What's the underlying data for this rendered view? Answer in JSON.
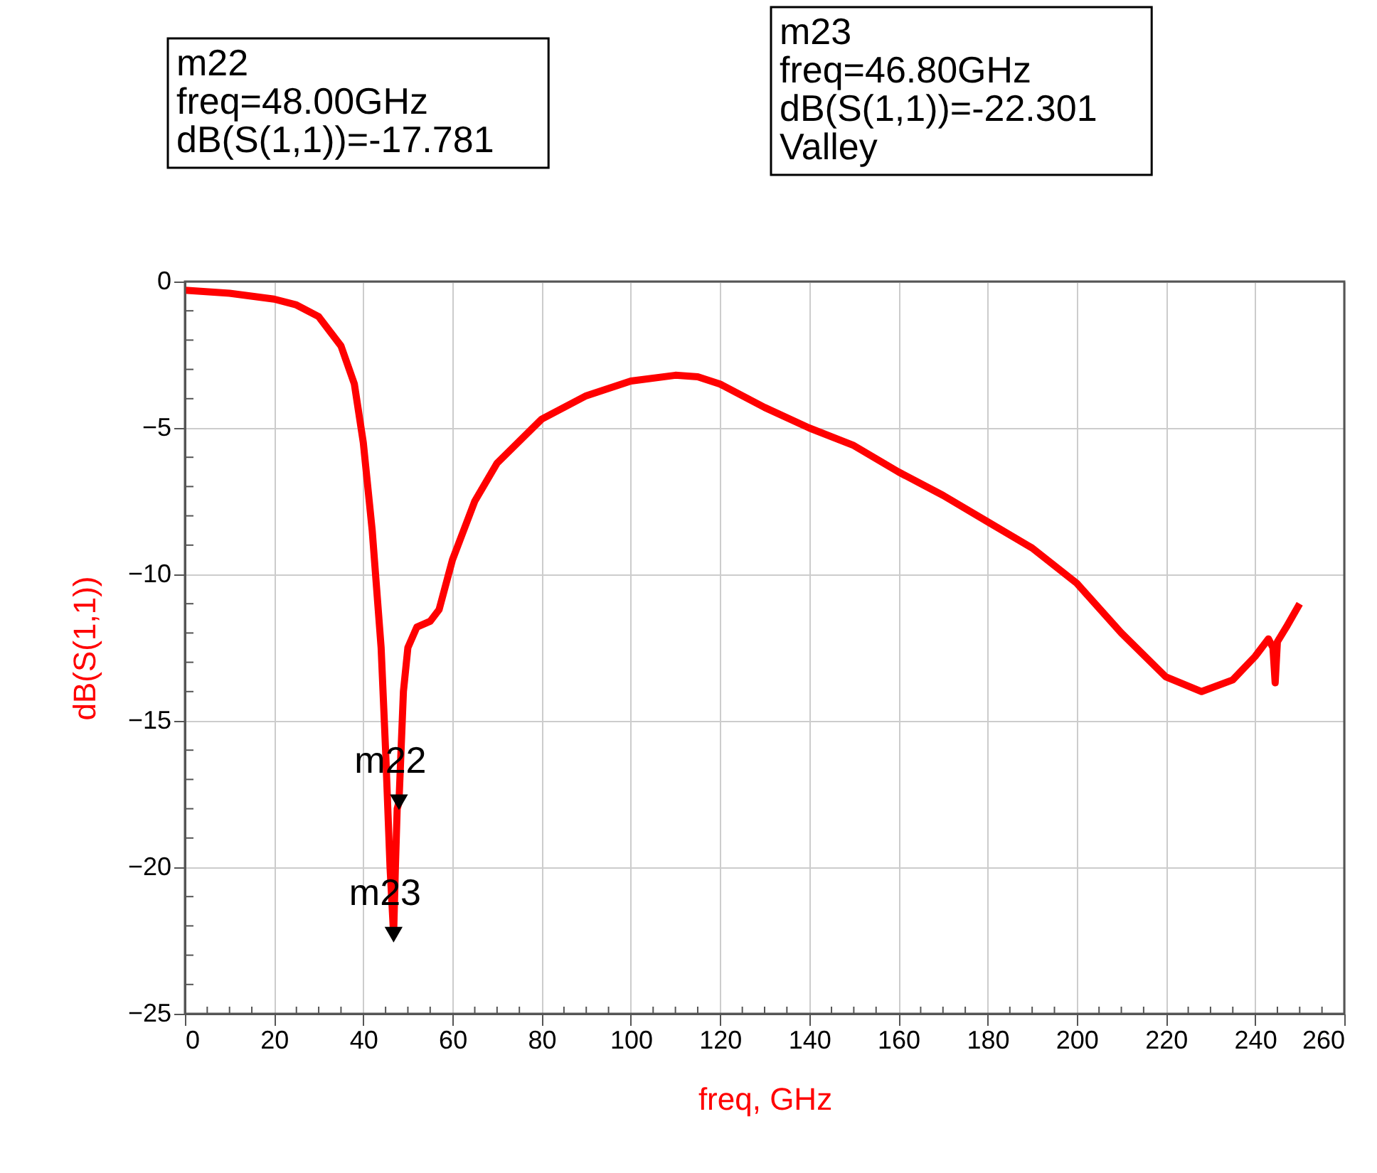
{
  "chart_data": {
    "type": "line",
    "xlabel": "freq, GHz",
    "ylabel": "dB(S(1,1))",
    "x": [
      0,
      10,
      20,
      25,
      30,
      35,
      38,
      40,
      42,
      44,
      45,
      46,
      46.8,
      47.2,
      47.6,
      48,
      49,
      50,
      52,
      55,
      57,
      60,
      65,
      70,
      80,
      90,
      100,
      110,
      115,
      120,
      130,
      140,
      150,
      160,
      170,
      180,
      190,
      200,
      210,
      220,
      228,
      235,
      240,
      243,
      244,
      244.5,
      245,
      247,
      250
    ],
    "series": [
      {
        "color": "#ff0000",
        "values": [
          -0.3,
          -0.4,
          -0.6,
          -0.8,
          -1.2,
          -2.2,
          -3.5,
          -5.5,
          -8.5,
          -12.5,
          -16,
          -20,
          -22.301,
          -20,
          -18,
          -17.781,
          -14,
          -12.5,
          -11.8,
          -11.6,
          -11.2,
          -9.5,
          -7.5,
          -6.2,
          -4.7,
          -3.9,
          -3.4,
          -3.2,
          -3.25,
          -3.5,
          -4.3,
          -5.0,
          -5.6,
          -6.5,
          -7.3,
          -8.2,
          -9.1,
          -10.3,
          -12.0,
          -13.5,
          -14.0,
          -13.6,
          -12.8,
          -12.2,
          -12.5,
          -13.7,
          -12.3,
          -11.8,
          -11.0
        ]
      },
      {
        "type": "scatter",
        "color": "#000000",
        "marker": "triangle",
        "x": [
          48,
          46.8
        ],
        "values": [
          -17.781,
          -22.301
        ]
      }
    ],
    "xlim": [
      0,
      260
    ],
    "xticks": [
      0,
      20,
      40,
      60,
      80,
      100,
      120,
      140,
      160,
      180,
      200,
      220,
      240,
      260
    ],
    "ylim": [
      -25,
      0
    ],
    "yticks": [
      -25,
      -20,
      -15,
      -10,
      -5,
      0
    ],
    "grid": true,
    "legend": false,
    "marker": "none",
    "line_style": "solid",
    "annotations": [
      "m22\nfreq=48.00GHz\ndB(S(1,1))=-17.781",
      "m23\nfreq=46.80GHz\ndB(S(1,1))=-22.301\nValley",
      {
        "text": "m22",
        "x": 48,
        "y": -17.781
      },
      {
        "text": "m23",
        "x": 46.8,
        "y": -22.301
      }
    ]
  }
}
